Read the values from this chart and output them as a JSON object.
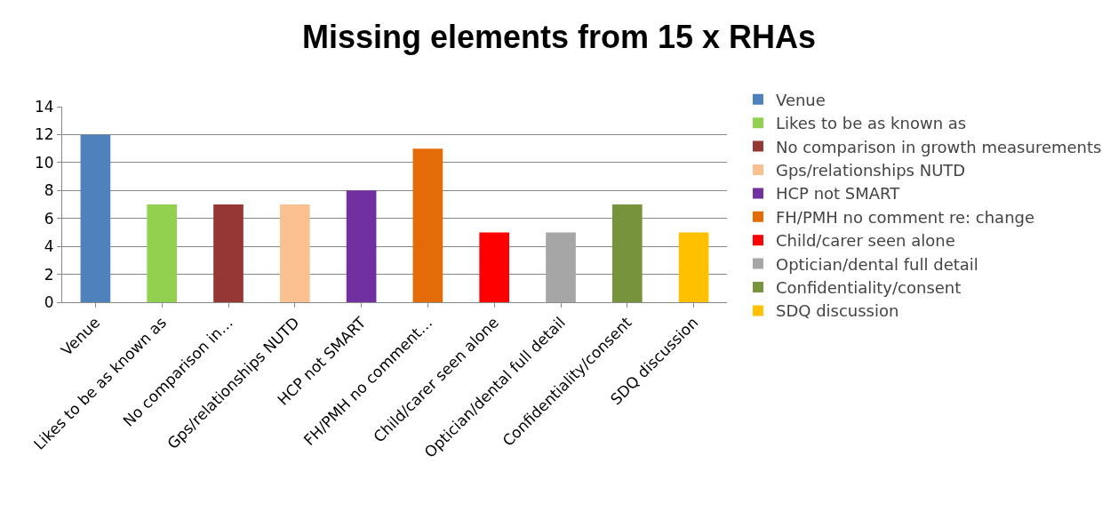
{
  "chart_data": {
    "type": "bar",
    "title": "Missing elements from 15 x RHAs",
    "categories": [
      "Venue",
      "Likes to be as known as",
      "No comparison in…",
      "Gps/relationships NUTD",
      "HCP not SMART",
      "FH/PMH no comment…",
      "Child/carer seen alone",
      "Optician/dental full detail",
      "Confidentiality/consent",
      "SDQ discussion"
    ],
    "series": [
      {
        "name": "Venue",
        "color": "#4f81bd",
        "values": [
          12,
          null,
          null,
          null,
          null,
          null,
          null,
          null,
          null,
          null
        ]
      },
      {
        "name": "Likes to be as known as",
        "color": "#92d050",
        "values": [
          null,
          7,
          null,
          null,
          null,
          null,
          null,
          null,
          null,
          null
        ]
      },
      {
        "name": "No comparison in growth measurements",
        "color": "#953735",
        "values": [
          null,
          null,
          7,
          null,
          null,
          null,
          null,
          null,
          null,
          null
        ]
      },
      {
        "name": "Gps/relationships NUTD",
        "color": "#fac090",
        "values": [
          null,
          null,
          null,
          7,
          null,
          null,
          null,
          null,
          null,
          null
        ]
      },
      {
        "name": "HCP not SMART",
        "color": "#7030a0",
        "values": [
          null,
          null,
          null,
          null,
          8,
          null,
          null,
          null,
          null,
          null
        ]
      },
      {
        "name": "FH/PMH no comment re: change",
        "color": "#e36c09",
        "values": [
          null,
          null,
          null,
          null,
          null,
          11,
          null,
          null,
          null,
          null
        ]
      },
      {
        "name": "Child/carer seen alone",
        "color": "#ff0000",
        "values": [
          null,
          null,
          null,
          null,
          null,
          null,
          5,
          null,
          null,
          null
        ]
      },
      {
        "name": "Optician/dental full detail",
        "color": "#a6a6a6",
        "values": [
          null,
          null,
          null,
          null,
          null,
          null,
          null,
          5,
          null,
          null
        ]
      },
      {
        "name": "Confidentiality/consent",
        "color": "#77933c",
        "values": [
          null,
          null,
          null,
          null,
          null,
          null,
          null,
          null,
          7,
          null
        ]
      },
      {
        "name": "SDQ discussion",
        "color": "#ffc000",
        "values": [
          null,
          null,
          null,
          null,
          null,
          null,
          null,
          null,
          null,
          5
        ]
      }
    ],
    "ylim": [
      0,
      14
    ],
    "yticks": [
      0,
      2,
      4,
      6,
      8,
      10,
      12,
      14
    ],
    "grid": "y",
    "legend": "right"
  }
}
